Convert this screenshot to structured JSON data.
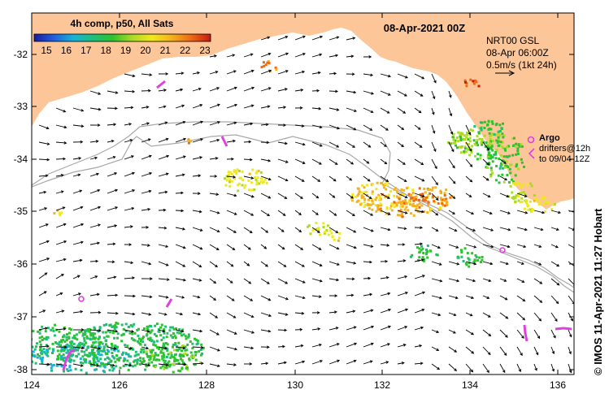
{
  "map": {
    "title_date": "08-Apr-2021 00Z",
    "colorbar": {
      "title": "4h comp, p50, All Sats",
      "ticks": [
        "15",
        "16",
        "17",
        "18",
        "19",
        "20",
        "21",
        "22",
        "23"
      ],
      "range": [
        15,
        23
      ],
      "colors": [
        "#1a1aa0",
        "#1f5fe0",
        "#16b3d8",
        "#1fbf7a",
        "#2ec22e",
        "#aadb22",
        "#f0e81a",
        "#f5b21a",
        "#ee6a12",
        "#c81a10"
      ]
    },
    "info": {
      "line1": "NRT00 GSL",
      "line2": "08-Apr 06:00Z",
      "line3": "0.5m/s (1kt 24h)"
    },
    "legend": {
      "argo_label": "Argo",
      "drifters_line1": "drifters@12h",
      "drifters_line2": "to 09/04-12Z"
    },
    "credit": "© IMOS 11-Apr-2021 11:27 Hobart",
    "lon_ticks": [
      "124",
      "126",
      "128",
      "130",
      "132",
      "134",
      "136"
    ],
    "lat_ticks": [
      "-32",
      "-33",
      "-34",
      "-35",
      "-36",
      "-37",
      "-38"
    ],
    "colors": {
      "land": "#fcc698",
      "sea": "#ffffff",
      "isobath": "#a8a8a8",
      "argo": "#e040e0",
      "arrow": "#000000"
    }
  }
}
